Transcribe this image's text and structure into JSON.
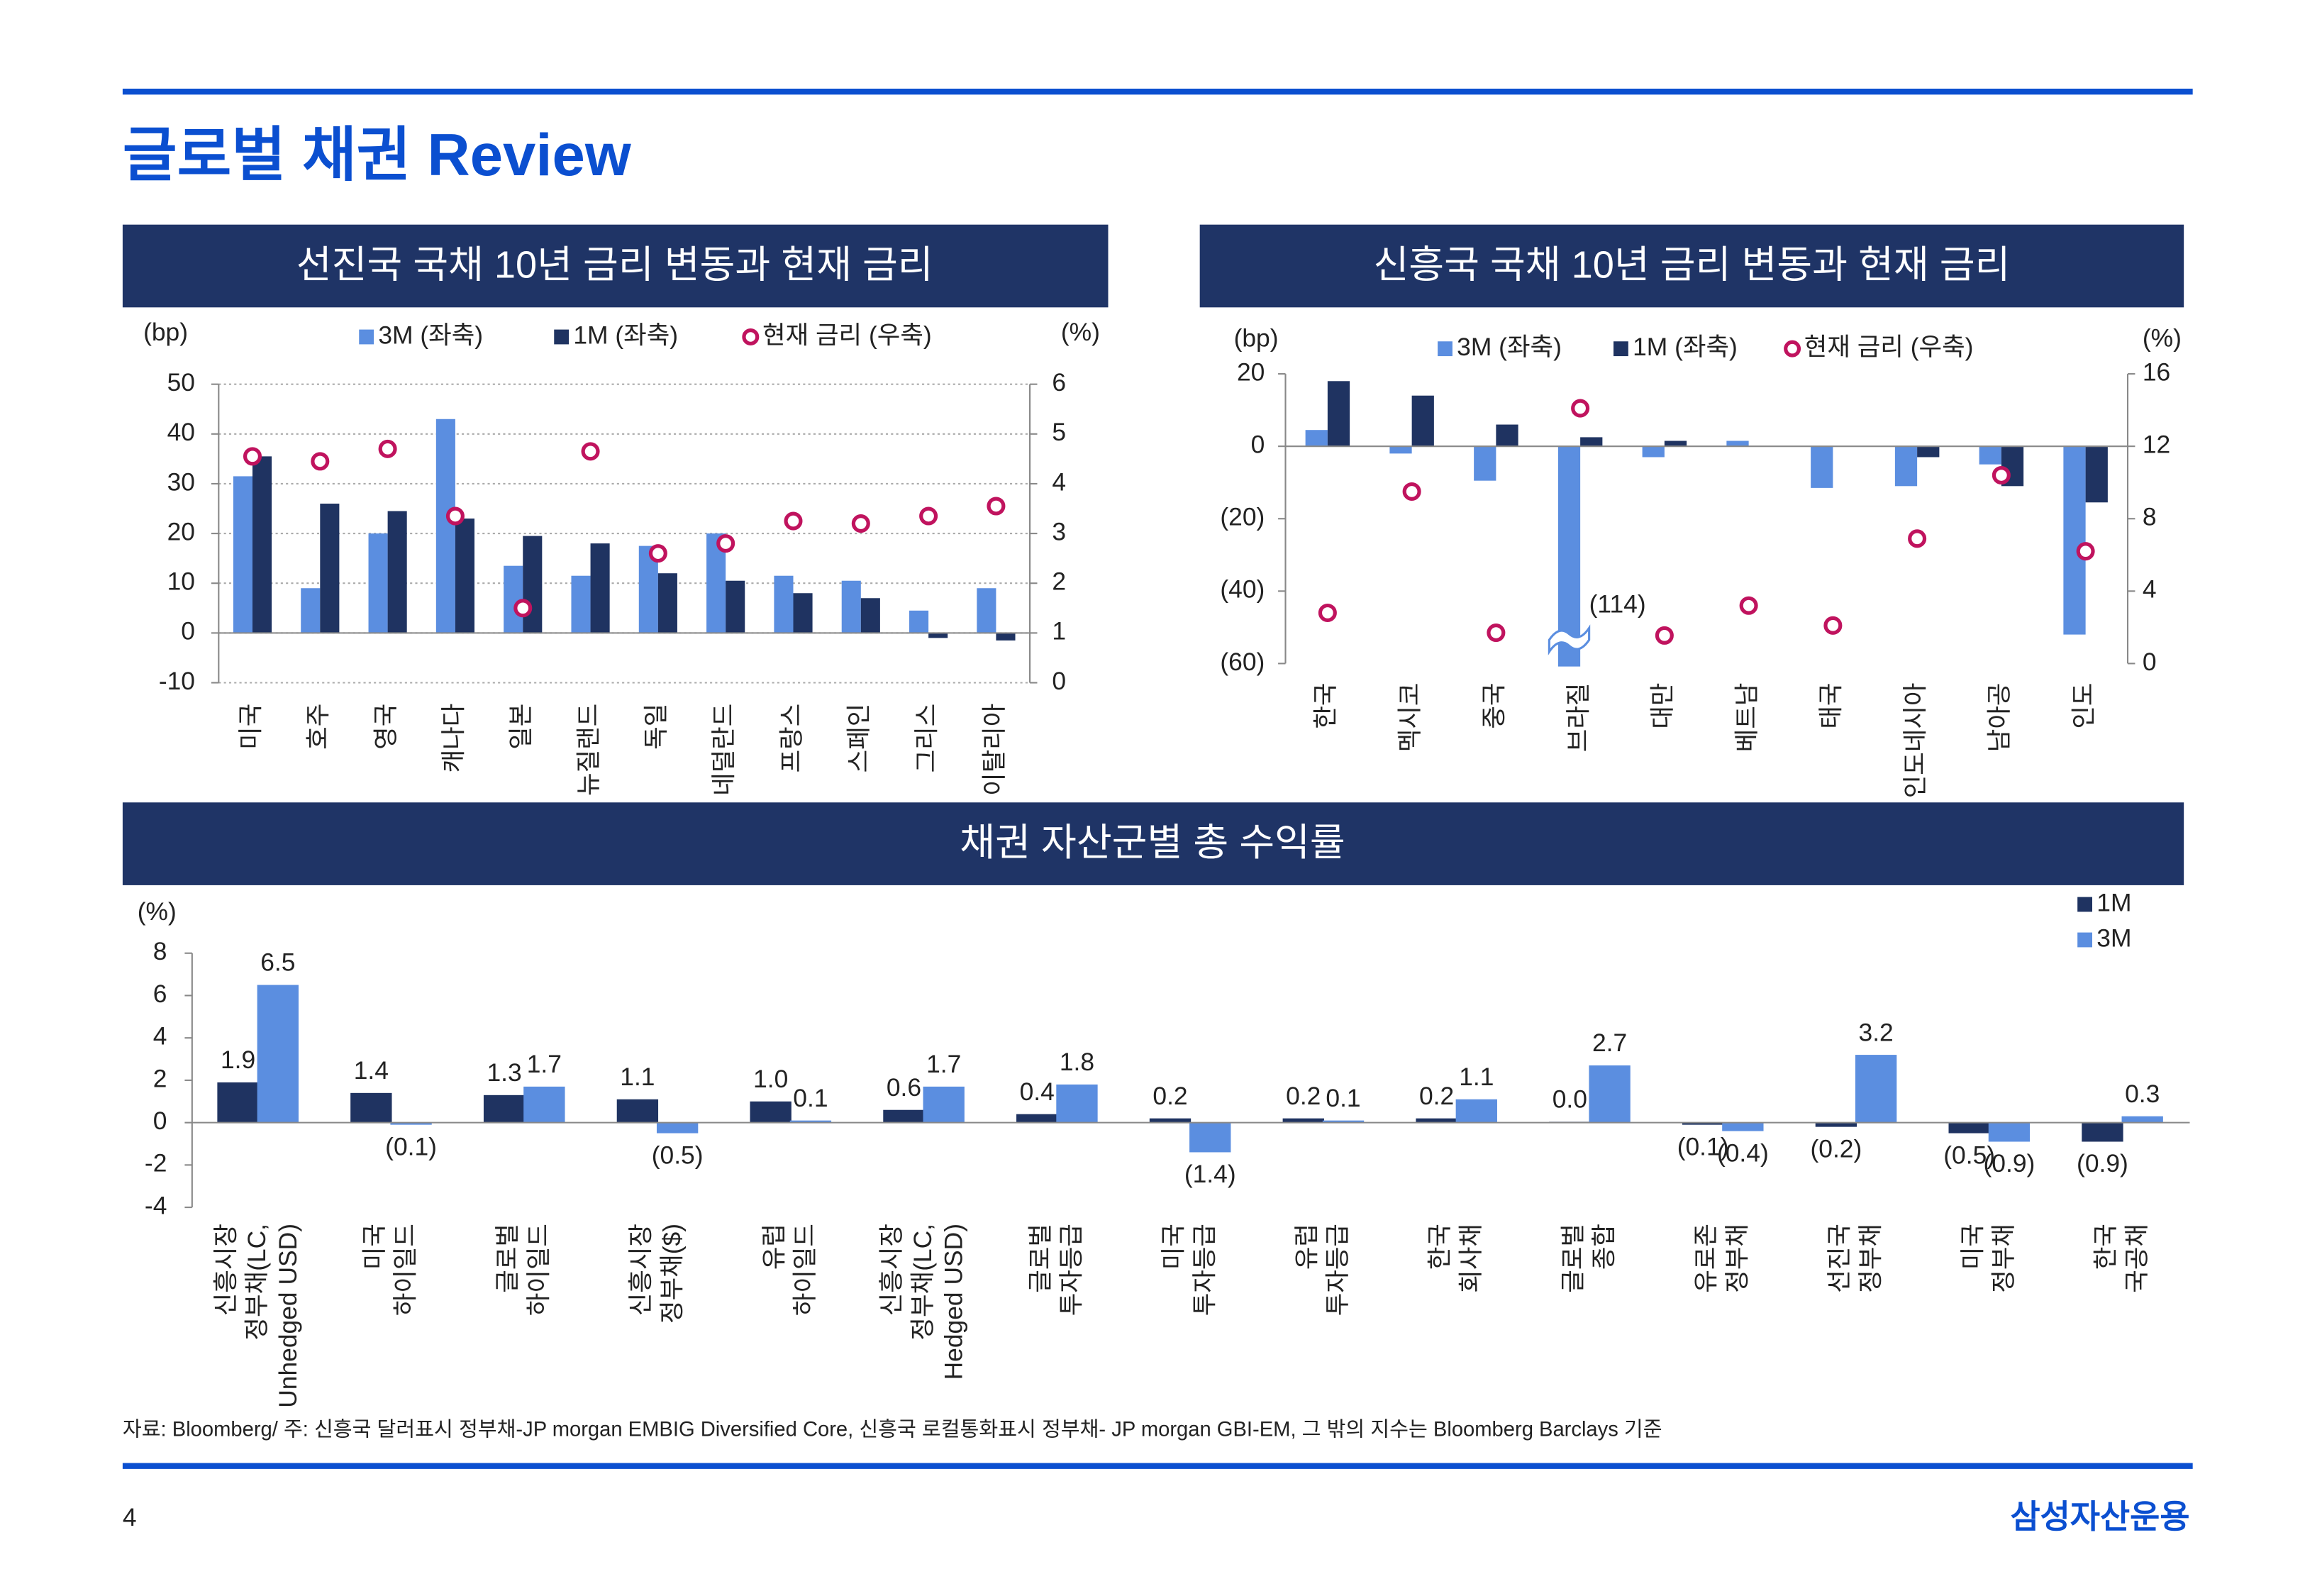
{
  "title": "글로벌 채권 Review",
  "chart_data": [
    {
      "type": "bar",
      "title": "선진국 국채 10년 금리 변동과 현재 금리",
      "y_label": "(bp)",
      "y2_label": "(%)",
      "categories": [
        "미국",
        "호주",
        "영국",
        "캐나다",
        "일본",
        "뉴질랜드",
        "독일",
        "네덜란드",
        "프랑스",
        "스페인",
        "그리스",
        "이탈리아"
      ],
      "series": [
        {
          "name": "3M (좌축)",
          "color": "#5b8ee0",
          "values": [
            31.5,
            9,
            20,
            43,
            13.5,
            11.5,
            17.5,
            20,
            11.5,
            10.5,
            4.5,
            9
          ]
        },
        {
          "name": "1M (좌축)",
          "color": "#1f3361",
          "values": [
            35.5,
            26,
            24.5,
            23,
            19.5,
            18,
            12,
            10.5,
            8,
            7,
            -1,
            -1.5
          ]
        },
        {
          "name": "현재 금리 (우축)",
          "color": "#c0135e",
          "type": "scatter",
          "axis": "y2",
          "values": [
            4.55,
            4.45,
            4.7,
            3.35,
            1.5,
            4.65,
            2.6,
            2.8,
            3.25,
            3.2,
            3.35,
            3.55
          ]
        }
      ],
      "ylim": [
        -10,
        50
      ],
      "yticks": [
        -10,
        0,
        10,
        20,
        30,
        40,
        50
      ],
      "y2lim": [
        0,
        6
      ],
      "y2ticks": [
        0,
        1,
        2,
        3,
        4,
        5,
        6
      ],
      "grid": true
    },
    {
      "type": "bar",
      "title": "신흥국 국채 10년 금리 변동과 현재 금리",
      "y_label": "(bp)",
      "y2_label": "(%)",
      "categories": [
        "한국",
        "멕시코",
        "중국",
        "브라질",
        "대만",
        "베트남",
        "태국",
        "인도네시아",
        "남아공",
        "인도"
      ],
      "series": [
        {
          "name": "3M (좌축)",
          "color": "#5b8ee0",
          "values": [
            4.5,
            -2,
            -9.5,
            -114,
            -3,
            1.5,
            -11.5,
            -11,
            -5,
            -52
          ],
          "value_labels": [
            null,
            null,
            null,
            "(114)",
            null,
            null,
            null,
            null,
            null,
            null
          ]
        },
        {
          "name": "1M (좌축)",
          "color": "#1f3361",
          "values": [
            18,
            14,
            6,
            2.5,
            1.5,
            0,
            0,
            -3,
            -11,
            -15.5
          ]
        },
        {
          "name": "현재 금리 (우축)",
          "color": "#c0135e",
          "type": "scatter",
          "axis": "y2",
          "values": [
            2.8,
            9.5,
            1.7,
            14.1,
            1.55,
            3.2,
            2.1,
            6.9,
            10.4,
            6.2
          ]
        }
      ],
      "ylim": [
        -60,
        20
      ],
      "yticks": [
        {
          "value": -60,
          "label": "(60)"
        },
        {
          "value": -40,
          "label": "(40)"
        },
        {
          "value": -20,
          "label": "(20)"
        },
        0,
        20
      ],
      "y2lim": [
        0,
        16
      ],
      "y2ticks": [
        0,
        4,
        8,
        12,
        16
      ],
      "grid": false
    },
    {
      "type": "bar",
      "title": "채권 자산군별 총 수익률",
      "y_label": "(%)",
      "categories": [
        [
          "신흥시장",
          "정부채(LC,",
          "Unhedged USD)"
        ],
        [
          "미국",
          "하이일드"
        ],
        [
          "글로벌",
          "하이일드"
        ],
        [
          "신흥시장",
          "정부채($)"
        ],
        [
          "유럽",
          "하이일드"
        ],
        [
          "신흥시장",
          "정부채(LC,",
          "Hedged USD)"
        ],
        [
          "글로벌",
          "투자등급"
        ],
        [
          "미국",
          "투자등급"
        ],
        [
          "유럽",
          "투자등급"
        ],
        [
          "한국",
          "회사채"
        ],
        [
          "글로벌",
          "종합"
        ],
        [
          "유로존",
          "정부채"
        ],
        [
          "선진국",
          "정부채"
        ],
        [
          "미국",
          "정부채"
        ],
        [
          "한국",
          "국공채"
        ]
      ],
      "series": [
        {
          "name": "1M",
          "color": "#1f3361",
          "values": [
            1.9,
            1.4,
            1.3,
            1.1,
            1.0,
            0.6,
            0.4,
            0.2,
            0.2,
            0.2,
            0.04,
            -0.1,
            -0.2,
            -0.5,
            -0.9
          ],
          "value_labels": [
            "1.9",
            "1.4",
            "1.3",
            "1.1",
            "1.0",
            "0.6",
            "0.4",
            "0.2",
            "0.2",
            "0.2",
            "0.0",
            "(0.1)",
            "(0.2)",
            "(0.5)",
            "(0.9)"
          ]
        },
        {
          "name": "3M",
          "color": "#5b8ee0",
          "values": [
            6.5,
            -0.1,
            1.7,
            -0.5,
            0.1,
            1.7,
            1.8,
            -1.4,
            0.1,
            1.1,
            2.7,
            -0.4,
            3.2,
            -0.9,
            0.3
          ],
          "value_labels": [
            "6.5",
            "(0.1)",
            "1.7",
            "(0.5)",
            "0.1",
            "1.7",
            "1.8",
            "(1.4)",
            "0.1",
            "1.1",
            "2.7",
            "(0.4)",
            "3.2",
            "(0.9)",
            "0.3"
          ]
        }
      ],
      "ylim": [
        -4,
        8
      ],
      "yticks": [
        -4,
        -2,
        0,
        2,
        4,
        6,
        8
      ],
      "grid": false
    }
  ],
  "source": "자료: Bloomberg/ 주: 신흥국 달러표시 정부채-JP morgan EMBIG Diversified Core, 신흥국 로컬통화표시 정부채- JP morgan GBI-EM, 그 밖의 지수는 Bloomberg Barclays 기준",
  "page_number": "4",
  "brand": "삼성자산운용"
}
